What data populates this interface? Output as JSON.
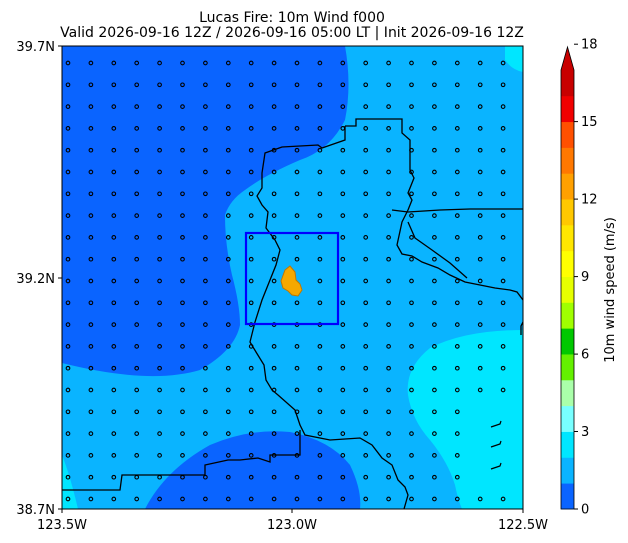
{
  "title": "Lucas Fire: 10m Wind f000",
  "subtitle": "Valid 2026-09-16 12Z / 2026-09-16 05:00 LT | Init 2026-09-16 12Z",
  "axes": {
    "lon_ticks": [
      "123.5W",
      "123.0W",
      "122.5W"
    ],
    "lat_ticks": [
      "39.7N",
      "39.2N",
      "38.7N"
    ],
    "lon_range": [
      -123.5,
      -122.5
    ],
    "lat_range": [
      38.7,
      39.7
    ]
  },
  "colorbar": {
    "label": "10m wind speed (m/s)",
    "ticks": [
      "0",
      "3",
      "6",
      "9",
      "12",
      "15",
      "18"
    ],
    "extend": "max",
    "colors": [
      "#0a64ff",
      "#0ab4ff",
      "#00e6ff",
      "#78ffff",
      "#aaffaa",
      "#64f000",
      "#00c800",
      "#a0ff00",
      "#e6ff00",
      "#ffff00",
      "#ffe600",
      "#ffc800",
      "#ffa000",
      "#ff7800",
      "#ff5000",
      "#f00000",
      "#c80000"
    ]
  },
  "colors": {
    "speed_0_1": "#0a64ff",
    "speed_1_2": "#0ab4ff",
    "speed_2_3": "#00e6ff",
    "domain_box": "#0000ff",
    "fire_perimeter": "#f5a800"
  },
  "map_features": [
    "county-boundaries",
    "wind-barbs",
    "fire-perimeter",
    "fire-domain-box"
  ]
}
